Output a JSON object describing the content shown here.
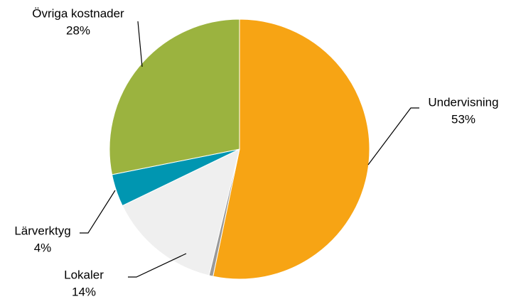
{
  "chart_data": {
    "type": "pie",
    "categories": [
      "Undervisning",
      null,
      "Lokaler",
      "Lärverktyg",
      "Övriga kostnader"
    ],
    "values": [
      53,
      0.5,
      14,
      4,
      28
    ],
    "value_labels": [
      "53%",
      null,
      "14%",
      "4%",
      "28%"
    ],
    "colors": [
      "#f7a414",
      "#9a9a9a",
      "#efefef",
      "#0096b1",
      "#9bb33f"
    ]
  }
}
